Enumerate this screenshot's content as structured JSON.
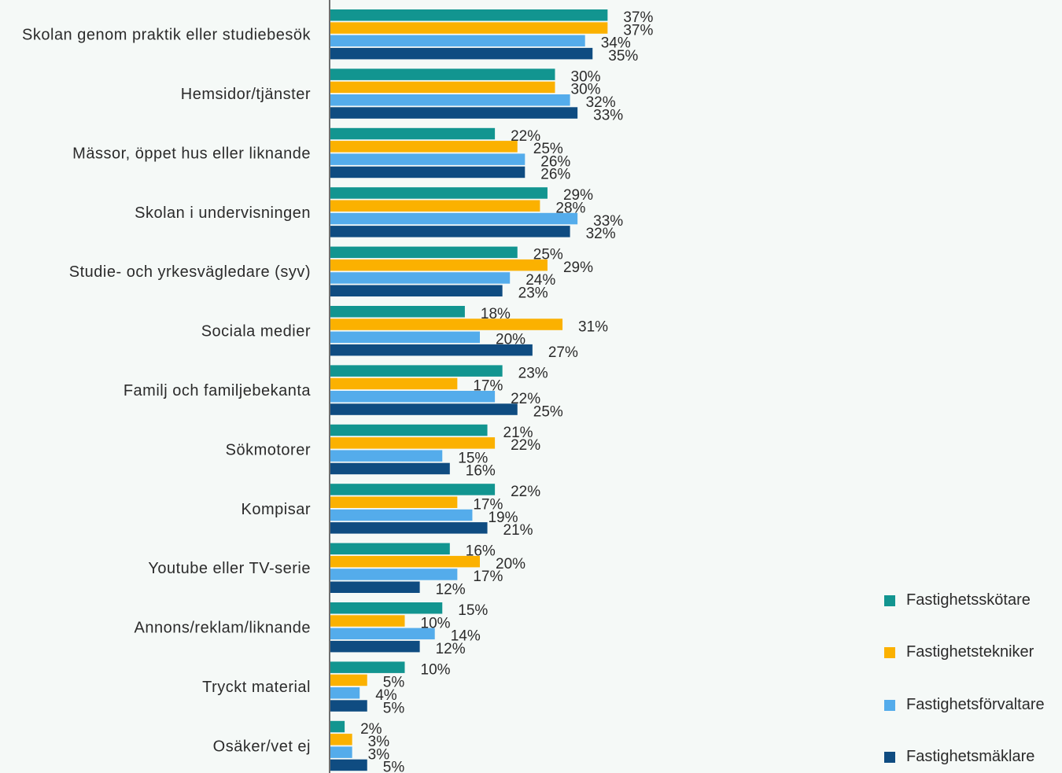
{
  "chart_data": {
    "type": "bar",
    "orientation": "horizontal",
    "categories": [
      "Skolan genom praktik eller studiebesök",
      "Hemsidor/tjänster",
      "Mässor, öppet hus eller liknande",
      "Skolan i undervisningen",
      "Studie- och yrkesvägledare (syv)",
      "Sociala medier",
      "Familj och familjebekanta",
      "Sökmotorer",
      "Kompisar",
      "Youtube eller TV-serie",
      "Annons/reklam/liknande",
      "Tryckt material",
      "Osäker/vet ej"
    ],
    "series": [
      {
        "name": "Fastighetsskötare",
        "color": "#129590",
        "values": [
          37,
          30,
          22,
          29,
          25,
          18,
          23,
          21,
          22,
          16,
          15,
          10,
          2
        ]
      },
      {
        "name": "Fastighetstekniker",
        "color": "#fbb100",
        "values": [
          37,
          30,
          25,
          28,
          29,
          31,
          17,
          22,
          17,
          20,
          10,
          5,
          3
        ]
      },
      {
        "name": "Fastighetsförvaltare",
        "color": "#54aceb",
        "values": [
          34,
          32,
          26,
          33,
          24,
          20,
          22,
          15,
          19,
          17,
          14,
          4,
          3
        ]
      },
      {
        "name": "Fastighetsmäklare",
        "color": "#0f4c81",
        "values": [
          35,
          33,
          26,
          32,
          23,
          27,
          25,
          16,
          21,
          12,
          12,
          5,
          5
        ]
      }
    ],
    "value_suffix": "%",
    "title": "",
    "xlabel": "",
    "ylabel": "",
    "xlim": [
      0,
      100
    ],
    "grid": false,
    "legend_position": "bottom-right"
  }
}
